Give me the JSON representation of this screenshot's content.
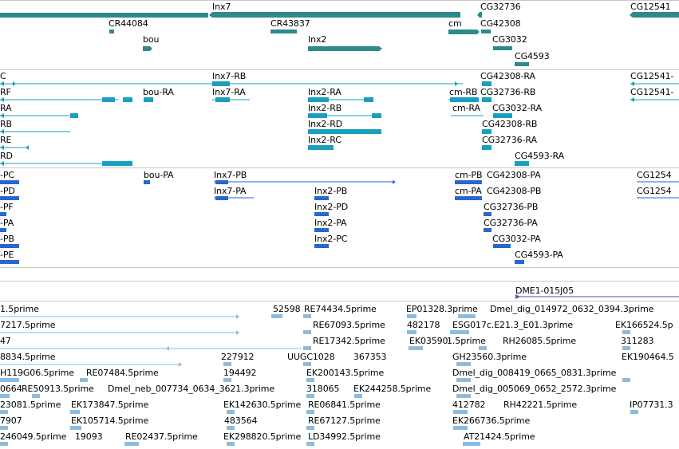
{
  "colors": {
    "gene": "#2e8a8a",
    "transcript": "#1a9fbf",
    "protein": "#2a66cc",
    "clone": "#6a48b8",
    "est": "#8cbce0",
    "divider": "#c9c9c9"
  },
  "tracks": {
    "genes": {
      "labels": [
        "Inx7",
        "CR44084",
        "CR43837",
        "CG32736",
        "CG42308",
        "CG12541",
        "bou",
        "Inx2",
        "cm",
        "CG3032",
        "CG4593"
      ]
    },
    "transcripts": {
      "labels": [
        "Inx7-RB",
        "C",
        "CG42308-RA",
        "CG12541-",
        "RF",
        "bou-RA",
        "Inx7-RA",
        "Inx2-RA",
        "cm-RB",
        "CG32736-RB",
        "CG12541-",
        "RA",
        "Inx2-RB",
        "cm-RA",
        "CG3032-RA",
        "RB",
        "Inx2-RD",
        "CG42308-RB",
        "RE",
        "Inx2-RC",
        "CG32736-RA",
        "RD",
        "CG4593-RA"
      ]
    },
    "proteins": {
      "labels": [
        "-PC",
        "bou-PA",
        "Inx7-PB",
        "cm-PB",
        "CG42308-PA",
        "CG1254",
        "-PD",
        "Inx7-PA",
        "Inx2-PB",
        "cm-PA",
        "CG42308-PB",
        "CG1254",
        "-PF",
        "Inx2-PD",
        "CG32736-PB",
        "-PA",
        "Inx2-PA",
        "CG32736-PA",
        "-PB",
        "Inx2-PC",
        "CG3032-PA",
        "-PE",
        "CG4593-PA"
      ]
    },
    "clones": {
      "labels": [
        "DME1-015J05"
      ]
    },
    "ests": {
      "labels": [
        "1.5prime",
        "52598",
        "RE74434.5prime",
        "EP01328.3prime",
        "Dmel_dig_014972_0632_0394.3prime",
        "7217.5prime",
        "RE67093.5prime",
        "482178",
        "ESG017c.E21.3_E01.3prime",
        "EK166524.5p",
        "47",
        "RE17342.5prime",
        "EK03590",
        "1.5prime",
        "RH26085.5prime",
        "311283",
        "8834.5prime",
        "227912",
        "UUGC1028",
        "367353",
        "GH23560.3prime",
        "EK190464.5",
        "H119G06.5prime",
        "RE07484.5prime",
        "194492",
        "EK200143.5prime",
        "Dmel_dig_008419_0665_0831.3prime",
        "0664",
        "RE50913.5prime",
        "Dmel_neb_007734_0634_3621.3prime",
        "318065",
        "EK244258.5prime",
        "Dmel_dig_005069_0652_2572.3prime",
        "23081.5prime",
        "EK173847.5prime",
        "EK142630.5prime",
        "RE06841.5prime",
        "412782",
        "RH42221.5prime",
        "IP07731.3",
        "7907",
        "EK105714.5prime",
        "483564",
        "RE67127.5prime",
        "EK266736.5prime",
        "246049.5prime",
        "19093",
        "RE02437.5prime",
        "EK298820.5prime",
        "LD34992.5prime",
        "AT21424.5prime"
      ]
    }
  }
}
